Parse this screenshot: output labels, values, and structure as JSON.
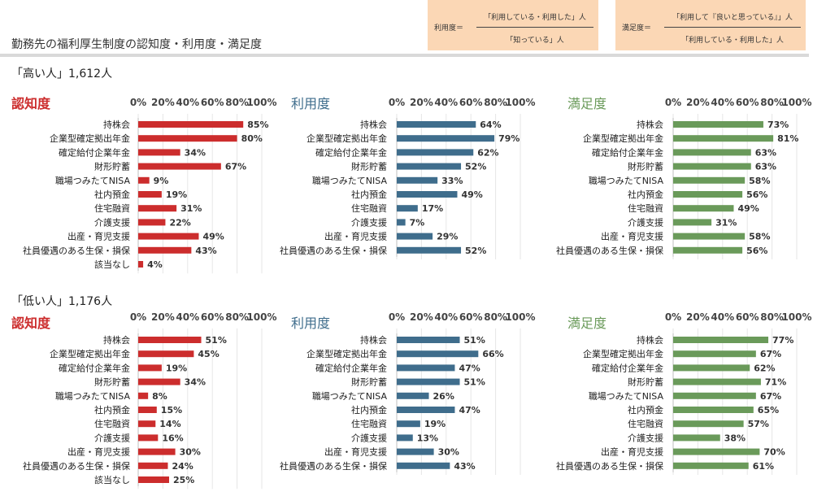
{
  "title": "勤務先の福利厚生制度の認知度・利用度・満足度",
  "formulas": [
    {
      "lhs": "利用度＝",
      "numerator": "「利用している・利用した」人",
      "denominator": "「知っている」人"
    },
    {
      "lhs": "満足度＝",
      "numerator": "「利用して『良いと思っている』」人",
      "denominator": "「利用している・利用した」人"
    }
  ],
  "groups": [
    {
      "label": "「高い人」1,612人"
    },
    {
      "label": "「低い人」1,176人"
    }
  ],
  "colors": {
    "recognition": "#cc2d2d",
    "usage": "#3f6d8c",
    "satisfaction": "#6a9a5a"
  },
  "chart_data": [
    {
      "type": "bar",
      "orientation": "horizontal",
      "title": "認知度",
      "group": "「高い人」1,612人",
      "xlim": [
        0,
        100
      ],
      "xticks": [
        "0%",
        "20%",
        "40%",
        "60%",
        "80%",
        "100%"
      ],
      "categories": [
        "持株会",
        "企業型確定拠出年金",
        "確定給付企業年金",
        "財形貯蓄",
        "職場つみたてNISA",
        "社内預金",
        "住宅融資",
        "介護支援",
        "出産・育児支援",
        "社員優遇のある生保・損保",
        "該当なし"
      ],
      "values": [
        85,
        80,
        34,
        67,
        9,
        19,
        31,
        22,
        49,
        43,
        4
      ],
      "labels": [
        "85%",
        "80%",
        "34%",
        "67%",
        "9%",
        "19%",
        "31%",
        "22%",
        "49%",
        "43%",
        "4%"
      ]
    },
    {
      "type": "bar",
      "orientation": "horizontal",
      "title": "利用度",
      "group": "「高い人」1,612人",
      "xlim": [
        0,
        100
      ],
      "xticks": [
        "0%",
        "20%",
        "40%",
        "60%",
        "80%",
        "100%"
      ],
      "categories": [
        "持株会",
        "企業型確定拠出年金",
        "確定給付企業年金",
        "財形貯蓄",
        "職場つみたてNISA",
        "社内預金",
        "住宅融資",
        "介護支援",
        "出産・育児支援",
        "社員優遇のある生保・損保"
      ],
      "values": [
        64,
        79,
        62,
        52,
        33,
        49,
        17,
        7,
        29,
        52
      ],
      "labels": [
        "64%",
        "79%",
        "62%",
        "52%",
        "33%",
        "49%",
        "17%",
        "7%",
        "29%",
        "52%"
      ]
    },
    {
      "type": "bar",
      "orientation": "horizontal",
      "title": "満足度",
      "group": "「高い人」1,612人",
      "xlim": [
        0,
        100
      ],
      "xticks": [
        "0%",
        "20%",
        "40%",
        "60%",
        "80%",
        "100%"
      ],
      "categories": [
        "持株会",
        "企業型確定拠出年金",
        "確定給付企業年金",
        "財形貯蓄",
        "職場つみたてNISA",
        "社内預金",
        "住宅融資",
        "介護支援",
        "出産・育児支援",
        "社員優遇のある生保・損保"
      ],
      "values": [
        73,
        81,
        63,
        63,
        58,
        56,
        49,
        31,
        58,
        56
      ],
      "labels": [
        "73%",
        "81%",
        "63%",
        "63%",
        "58%",
        "56%",
        "49%",
        "31%",
        "58%",
        "56%"
      ]
    },
    {
      "type": "bar",
      "orientation": "horizontal",
      "title": "認知度",
      "group": "「低い人」1,176人",
      "xlim": [
        0,
        100
      ],
      "xticks": [
        "0%",
        "20%",
        "40%",
        "60%",
        "80%",
        "100%"
      ],
      "categories": [
        "持株会",
        "企業型確定拠出年金",
        "確定給付企業年金",
        "財形貯蓄",
        "職場つみたてNISA",
        "社内預金",
        "住宅融資",
        "介護支援",
        "出産・育児支援",
        "社員優遇のある生保・損保",
        "該当なし"
      ],
      "values": [
        51,
        45,
        19,
        34,
        8,
        15,
        14,
        16,
        30,
        24,
        25
      ],
      "labels": [
        "51%",
        "45%",
        "19%",
        "34%",
        "8%",
        "15%",
        "14%",
        "16%",
        "30%",
        "24%",
        "25%"
      ]
    },
    {
      "type": "bar",
      "orientation": "horizontal",
      "title": "利用度",
      "group": "「低い人」1,176人",
      "xlim": [
        0,
        100
      ],
      "xticks": [
        "0%",
        "20%",
        "40%",
        "60%",
        "80%",
        "100%"
      ],
      "categories": [
        "持株会",
        "企業型確定拠出年金",
        "確定給付企業年金",
        "財形貯蓄",
        "職場つみたてNISA",
        "社内預金",
        "住宅融資",
        "介護支援",
        "出産・育児支援",
        "社員優遇のある生保・損保"
      ],
      "values": [
        51,
        66,
        47,
        51,
        26,
        47,
        19,
        13,
        30,
        43
      ],
      "labels": [
        "51%",
        "66%",
        "47%",
        "51%",
        "26%",
        "47%",
        "19%",
        "13%",
        "30%",
        "43%"
      ]
    },
    {
      "type": "bar",
      "orientation": "horizontal",
      "title": "満足度",
      "group": "「低い人」1,176人",
      "xlim": [
        0,
        100
      ],
      "xticks": [
        "0%",
        "20%",
        "40%",
        "60%",
        "80%",
        "100%"
      ],
      "categories": [
        "持株会",
        "企業型確定拠出年金",
        "確定給付企業年金",
        "財形貯蓄",
        "職場つみたてNISA",
        "社内預金",
        "住宅融資",
        "介護支援",
        "出産・育児支援",
        "社員優遇のある生保・損保"
      ],
      "values": [
        77,
        67,
        62,
        71,
        67,
        65,
        57,
        38,
        70,
        61
      ],
      "labels": [
        "77%",
        "67%",
        "62%",
        "71%",
        "67%",
        "65%",
        "57%",
        "38%",
        "70%",
        "61%"
      ]
    }
  ]
}
